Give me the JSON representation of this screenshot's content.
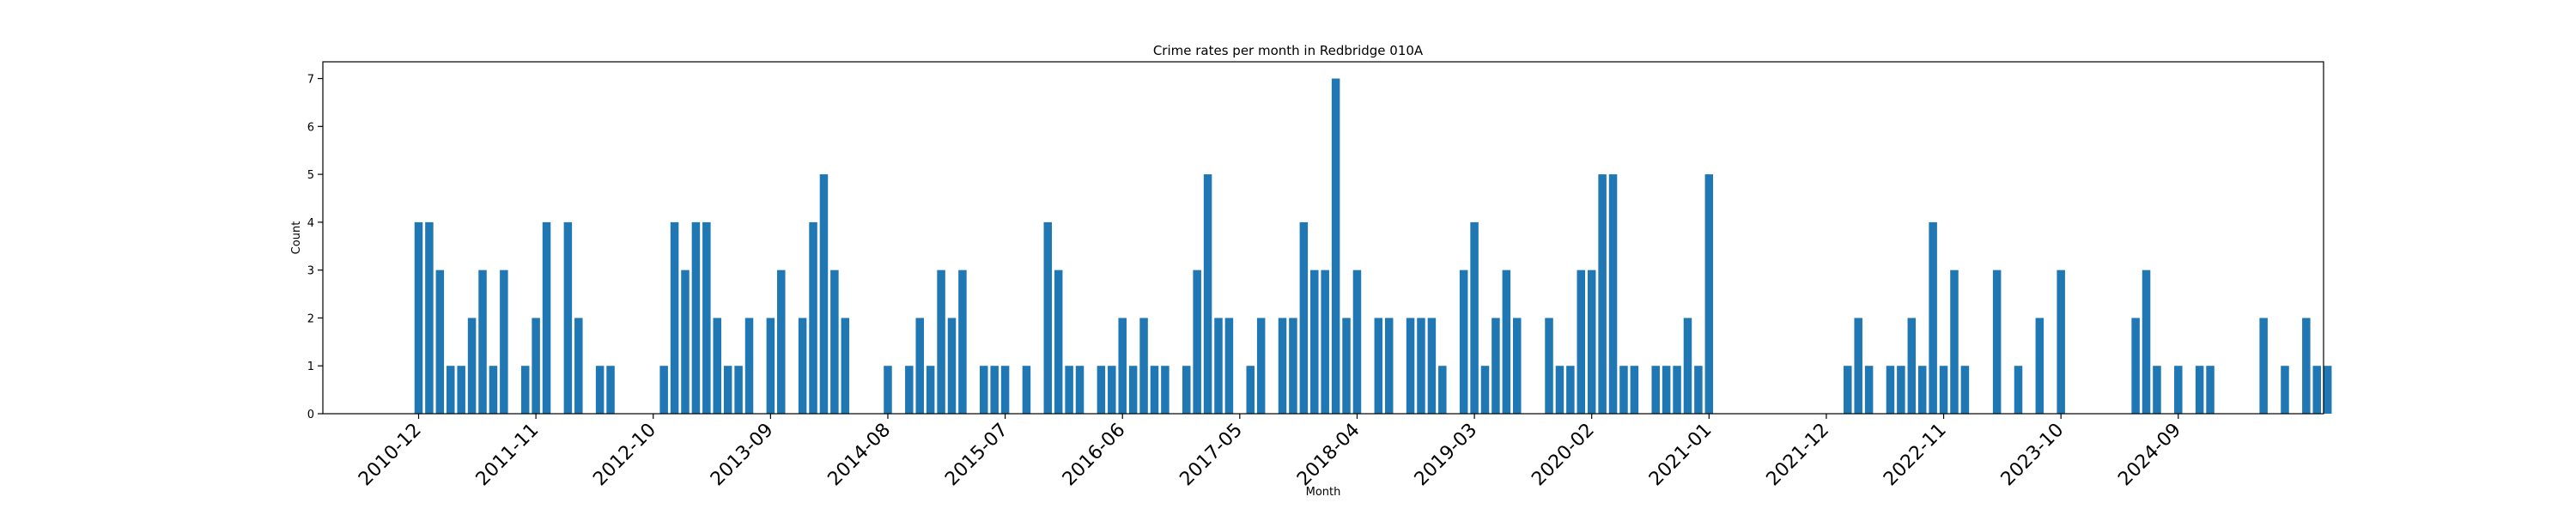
{
  "chart_data": {
    "type": "bar",
    "title": "Crime rates per month in Redbridge 010A",
    "xlabel": "Month",
    "ylabel": "Count",
    "ylim": [
      0,
      7.35
    ],
    "yticks": [
      0,
      1,
      2,
      3,
      4,
      5,
      6,
      7
    ],
    "xtick_labels": [
      "2010-12",
      "2011-11",
      "2012-10",
      "2013-09",
      "2014-08",
      "2015-07",
      "2016-06",
      "2017-05",
      "2018-04",
      "2019-03",
      "2020-02",
      "2021-01",
      "2021-12",
      "2022-11",
      "2023-10",
      "2024-09"
    ],
    "start_month": "2010-12",
    "bar_color": "#1f77b4",
    "values": [
      4,
      4,
      3,
      1,
      1,
      2,
      3,
      1,
      3,
      0,
      1,
      2,
      4,
      0,
      4,
      2,
      0,
      1,
      1,
      0,
      0,
      0,
      0,
      1,
      4,
      3,
      4,
      4,
      2,
      1,
      1,
      2,
      0,
      2,
      3,
      0,
      2,
      4,
      5,
      3,
      2,
      0,
      0,
      0,
      1,
      0,
      1,
      2,
      1,
      3,
      2,
      3,
      0,
      1,
      1,
      1,
      0,
      1,
      0,
      4,
      3,
      1,
      1,
      0,
      1,
      1,
      2,
      1,
      2,
      1,
      1,
      0,
      1,
      3,
      5,
      2,
      2,
      0,
      1,
      2,
      0,
      2,
      2,
      4,
      3,
      3,
      7,
      2,
      3,
      0,
      2,
      2,
      0,
      2,
      2,
      2,
      1,
      0,
      3,
      4,
      1,
      2,
      3,
      2,
      0,
      0,
      2,
      1,
      1,
      3,
      3,
      5,
      5,
      1,
      1,
      0,
      1,
      1,
      1,
      2,
      1,
      5,
      0,
      0,
      0,
      0,
      0,
      0,
      0,
      0,
      0,
      0,
      0,
      0,
      1,
      2,
      1,
      0,
      1,
      1,
      2,
      1,
      4,
      1,
      3,
      1,
      0,
      0,
      3,
      0,
      1,
      0,
      2,
      0,
      3,
      0,
      0,
      0,
      0,
      0,
      0,
      2,
      3,
      1,
      0,
      1,
      0,
      1,
      1,
      0,
      0,
      0,
      0,
      2,
      0,
      1,
      0,
      2,
      1,
      1
    ]
  }
}
